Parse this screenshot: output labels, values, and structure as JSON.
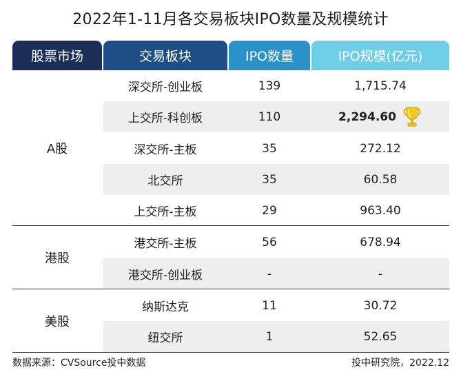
{
  "title": "2022年1-11月各交易板块IPO数量及规模统计",
  "headers": {
    "market": "股票市场",
    "board": "交易板块",
    "ipo_count": "IPO数量",
    "ipo_size": "IPO规模(亿元)"
  },
  "markets": {
    "a_share": "A股",
    "hk_share": "港股",
    "us_share": "美股"
  },
  "rows": [
    {
      "board": "深交所-创业板",
      "count": "139",
      "size": "1,715.74"
    },
    {
      "board": "上交所-科创板",
      "count": "110",
      "size": "2,294.60"
    },
    {
      "board": "深交所-主板",
      "count": "35",
      "size": "272.12"
    },
    {
      "board": "北交所",
      "count": "35",
      "size": "60.58"
    },
    {
      "board": "上交所-主板",
      "count": "29",
      "size": "963.40"
    },
    {
      "board": "港交所-主板",
      "count": "56",
      "size": "678.94"
    },
    {
      "board": "港交所-创业板",
      "count": "-",
      "size": "-"
    },
    {
      "board": "纳斯达克",
      "count": "11",
      "size": "30.72"
    },
    {
      "board": "纽交所",
      "count": "1",
      "size": "52.65"
    }
  ],
  "footer": {
    "source": "数据来源：CVSource投中数据",
    "credit": "投中研究院，2022.12"
  },
  "colors": {
    "header_market": "#1a2e58",
    "header_board": "#1f4d86",
    "header_count": "#2a92c7",
    "header_size": "#6fcde6",
    "stripe": "#eeeeee",
    "trophy": "#f2c81f"
  },
  "icons": {
    "max_marker": "trophy-icon"
  }
}
